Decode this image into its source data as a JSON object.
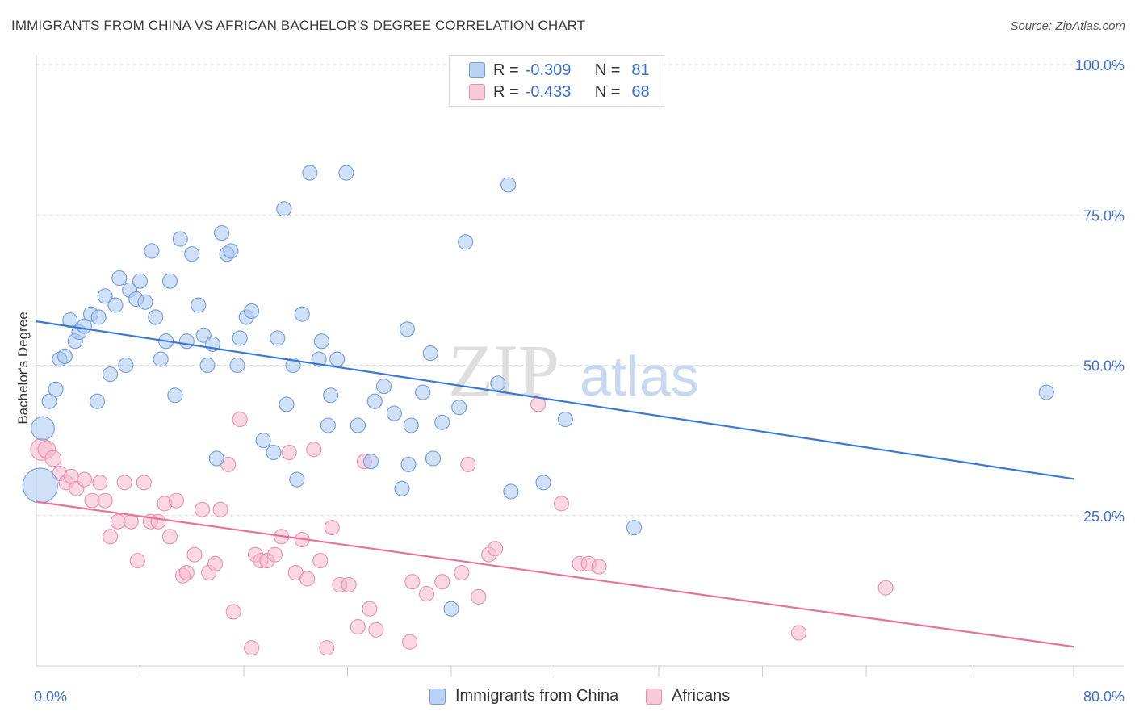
{
  "header": {
    "title": "IMMIGRANTS FROM CHINA VS AFRICAN BACHELOR'S DEGREE CORRELATION CHART",
    "source": "Source: ZipAtlas.com"
  },
  "legend": {
    "rows": [
      {
        "r_label": "R =",
        "r_value": "-0.309",
        "n_label": "N =",
        "n_value": "81"
      },
      {
        "r_label": "R =",
        "r_value": "-0.433",
        "n_label": "N =",
        "n_value": "68"
      }
    ]
  },
  "watermark": {
    "zip": "ZIP",
    "atlas": "atlas"
  },
  "bottom_legend": {
    "series1": "Immigrants from China",
    "series2": "Africans"
  },
  "colors": {
    "china_fill": "#a9c6f0",
    "china_stroke": "#6f9de0",
    "china_line": "#3a78d4",
    "africa_fill": "#f6b8cc",
    "africa_stroke": "#ec8fae",
    "africa_line": "#e8719a",
    "axis_text": "#3d6fd1",
    "grid": "#dcdcdc"
  },
  "chart_data": {
    "type": "scatter",
    "xlabel": "",
    "ylabel": "Bachelor's Degree",
    "xlim": [
      0,
      80
    ],
    "ylim": [
      0,
      100
    ],
    "x_tick_labels": [
      {
        "value": 0,
        "label": "0.0%"
      },
      {
        "value": 80,
        "label": "80.0%"
      }
    ],
    "y_tick_labels": [
      {
        "value": 25,
        "label": "25.0%"
      },
      {
        "value": 50,
        "label": "50.0%"
      },
      {
        "value": 75,
        "label": "75.0%"
      },
      {
        "value": 100,
        "label": "100.0%"
      }
    ],
    "grid": true,
    "legend_position": "top-center",
    "series": [
      {
        "name": "Immigrants from China",
        "r": -0.309,
        "n": 81,
        "trend": {
          "x": [
            0,
            80
          ],
          "y": [
            57.3,
            31.1
          ]
        },
        "points": [
          [
            0.5,
            39.5,
            1.6
          ],
          [
            0.3,
            30.0,
            2.4
          ],
          [
            1.0,
            44.0,
            1
          ],
          [
            1.5,
            46.0,
            1
          ],
          [
            1.8,
            51.0,
            1
          ],
          [
            2.2,
            51.5,
            1
          ],
          [
            2.6,
            57.5,
            1
          ],
          [
            3.0,
            54.0,
            1
          ],
          [
            3.3,
            55.5,
            1
          ],
          [
            3.7,
            56.5,
            1
          ],
          [
            4.2,
            58.5,
            1
          ],
          [
            4.8,
            58.0,
            1
          ],
          [
            4.7,
            44.0,
            1
          ],
          [
            5.3,
            61.5,
            1
          ],
          [
            5.7,
            48.5,
            1
          ],
          [
            6.1,
            60.0,
            1
          ],
          [
            6.4,
            64.5,
            1
          ],
          [
            6.9,
            50.0,
            1
          ],
          [
            7.2,
            62.5,
            1
          ],
          [
            7.7,
            61.0,
            1
          ],
          [
            8.0,
            64.0,
            1
          ],
          [
            8.4,
            60.5,
            1
          ],
          [
            8.9,
            69.0,
            1
          ],
          [
            9.2,
            58.0,
            1
          ],
          [
            9.6,
            51.0,
            1
          ],
          [
            10.0,
            54.0,
            1
          ],
          [
            10.3,
            64.0,
            1
          ],
          [
            10.7,
            45.0,
            1
          ],
          [
            11.1,
            71.0,
            1
          ],
          [
            11.6,
            54.0,
            1
          ],
          [
            12.0,
            68.5,
            1
          ],
          [
            12.5,
            60.0,
            1
          ],
          [
            12.9,
            55.0,
            1
          ],
          [
            13.2,
            50.0,
            1
          ],
          [
            13.6,
            53.5,
            1
          ],
          [
            13.9,
            34.5,
            1
          ],
          [
            14.3,
            72.0,
            1
          ],
          [
            14.7,
            68.5,
            1
          ],
          [
            15.0,
            69.0,
            1
          ],
          [
            15.5,
            50.0,
            1
          ],
          [
            15.7,
            54.5,
            1
          ],
          [
            16.2,
            58.0,
            1
          ],
          [
            16.6,
            59.0,
            1
          ],
          [
            17.5,
            37.5,
            1
          ],
          [
            18.3,
            35.5,
            1
          ],
          [
            18.6,
            54.5,
            1
          ],
          [
            19.1,
            76.0,
            1
          ],
          [
            19.3,
            43.5,
            1
          ],
          [
            19.8,
            50.0,
            1
          ],
          [
            20.1,
            31.0,
            1
          ],
          [
            20.5,
            58.5,
            1
          ],
          [
            21.1,
            82.0,
            1
          ],
          [
            21.8,
            51.0,
            1
          ],
          [
            22.0,
            54.0,
            1
          ],
          [
            22.5,
            40.0,
            1
          ],
          [
            22.7,
            45.0,
            1
          ],
          [
            23.2,
            51.0,
            1
          ],
          [
            23.9,
            82.0,
            1
          ],
          [
            24.8,
            40.0,
            1
          ],
          [
            25.8,
            34.0,
            1
          ],
          [
            26.1,
            44.0,
            1
          ],
          [
            26.8,
            46.5,
            1
          ],
          [
            27.6,
            42.0,
            1
          ],
          [
            28.2,
            29.5,
            1
          ],
          [
            28.6,
            56.0,
            1
          ],
          [
            28.7,
            33.5,
            1
          ],
          [
            28.9,
            40.0,
            1
          ],
          [
            29.8,
            45.5,
            1
          ],
          [
            30.4,
            52.0,
            1
          ],
          [
            30.6,
            34.5,
            1
          ],
          [
            31.3,
            40.5,
            1
          ],
          [
            32.0,
            9.5,
            1
          ],
          [
            32.6,
            43.0,
            1
          ],
          [
            33.1,
            70.5,
            1
          ],
          [
            35.6,
            47.0,
            1
          ],
          [
            36.4,
            80.0,
            1
          ],
          [
            36.6,
            29.0,
            1
          ],
          [
            39.1,
            30.5,
            1
          ],
          [
            40.8,
            41.0,
            1
          ],
          [
            46.1,
            23.0,
            1
          ],
          [
            77.9,
            45.5,
            1
          ]
        ]
      },
      {
        "name": "Africans",
        "r": -0.433,
        "n": 68,
        "trend": {
          "x": [
            0,
            80
          ],
          "y": [
            27.3,
            3.2
          ]
        },
        "points": [
          [
            0.4,
            36.0,
            1.5
          ],
          [
            0.8,
            36.0,
            1.2
          ],
          [
            1.3,
            34.5,
            1.1
          ],
          [
            1.8,
            32.0,
            1
          ],
          [
            2.3,
            30.5,
            1
          ],
          [
            2.7,
            31.5,
            1
          ],
          [
            3.1,
            29.5,
            1
          ],
          [
            3.7,
            31.0,
            1
          ],
          [
            4.3,
            27.5,
            1
          ],
          [
            4.9,
            30.5,
            1
          ],
          [
            5.3,
            27.5,
            1
          ],
          [
            5.7,
            21.5,
            1
          ],
          [
            6.3,
            24.0,
            1
          ],
          [
            6.8,
            30.5,
            1
          ],
          [
            7.3,
            24.0,
            1
          ],
          [
            7.8,
            17.5,
            1
          ],
          [
            8.3,
            30.5,
            1
          ],
          [
            8.8,
            24.0,
            1
          ],
          [
            9.4,
            24.0,
            1
          ],
          [
            9.9,
            27.0,
            1
          ],
          [
            10.3,
            21.5,
            1
          ],
          [
            10.8,
            27.5,
            1
          ],
          [
            11.3,
            15.0,
            1
          ],
          [
            11.6,
            15.5,
            1
          ],
          [
            12.2,
            18.5,
            1
          ],
          [
            12.8,
            26.0,
            1
          ],
          [
            13.3,
            15.5,
            1
          ],
          [
            13.8,
            17.0,
            1
          ],
          [
            14.2,
            26.0,
            1
          ],
          [
            14.8,
            33.5,
            1
          ],
          [
            15.2,
            9.0,
            1
          ],
          [
            15.7,
            41.0,
            1
          ],
          [
            16.6,
            3.0,
            1
          ],
          [
            16.9,
            18.5,
            1
          ],
          [
            17.3,
            17.5,
            1
          ],
          [
            17.8,
            17.5,
            1
          ],
          [
            18.4,
            18.5,
            1
          ],
          [
            18.9,
            21.5,
            1
          ],
          [
            19.5,
            35.5,
            1
          ],
          [
            20.0,
            15.5,
            1
          ],
          [
            20.5,
            21.0,
            1
          ],
          [
            20.9,
            14.5,
            1
          ],
          [
            21.4,
            36.0,
            1
          ],
          [
            21.9,
            17.5,
            1
          ],
          [
            22.4,
            3.0,
            1
          ],
          [
            22.8,
            23.0,
            1
          ],
          [
            23.4,
            13.5,
            1
          ],
          [
            24.1,
            13.5,
            1
          ],
          [
            24.8,
            6.5,
            1
          ],
          [
            25.3,
            34.0,
            1
          ],
          [
            25.7,
            9.5,
            1
          ],
          [
            26.2,
            6.0,
            1
          ],
          [
            28.8,
            4.0,
            1
          ],
          [
            29.0,
            14.0,
            1
          ],
          [
            30.1,
            12.0,
            1
          ],
          [
            31.3,
            14.0,
            1
          ],
          [
            32.8,
            15.5,
            1
          ],
          [
            33.3,
            33.5,
            1
          ],
          [
            34.1,
            11.5,
            1
          ],
          [
            34.9,
            18.5,
            1
          ],
          [
            35.4,
            19.5,
            1
          ],
          [
            38.7,
            43.5,
            1
          ],
          [
            40.5,
            27.0,
            1
          ],
          [
            41.9,
            17.0,
            1
          ],
          [
            42.6,
            17.0,
            1
          ],
          [
            43.4,
            16.5,
            1
          ],
          [
            58.8,
            5.5,
            1
          ],
          [
            65.5,
            13.0,
            1
          ]
        ]
      }
    ]
  }
}
